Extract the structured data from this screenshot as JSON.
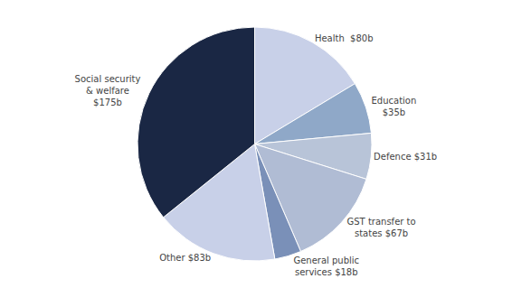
{
  "chart_data": {
    "type": "pie",
    "categories": [
      "Health  $80b",
      "Education\n$35b",
      "Defence $31b",
      "GST transfer to\nstates $67b",
      "General public\nservices $18b",
      "Other $83b",
      "Social security\n& welfare\n$175b"
    ],
    "values": [
      80,
      35,
      31,
      67,
      18,
      83,
      175
    ],
    "colors": [
      "#c8d0e8",
      "#8fa8c8",
      "#b8c4d8",
      "#b0bcd4",
      "#7a90b8",
      "#c8d0e8",
      "#1a2744"
    ]
  }
}
